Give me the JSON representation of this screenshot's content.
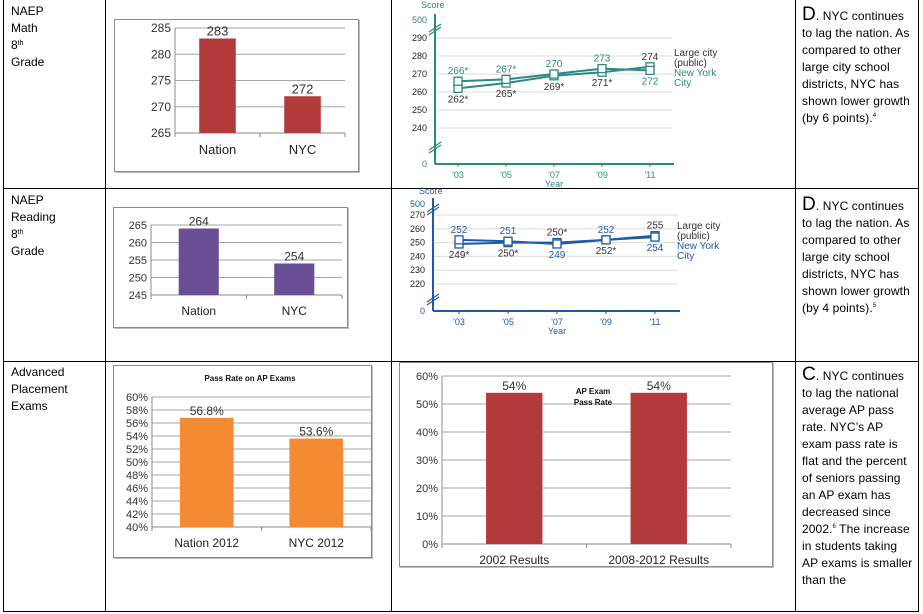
{
  "rows": [
    {
      "label_lines": [
        "NAEP",
        "Math",
        "8",
        "Grade"
      ],
      "label_sup": "th",
      "note": {
        "grade": "D",
        "text": ". NYC continues to lag the nation. As compared to other large city school districts, NYC has shown lower growth (by 6 points).",
        "footnote": "4"
      }
    },
    {
      "label_lines": [
        "NAEP",
        "Reading",
        "8",
        "Grade"
      ],
      "label_sup": "th",
      "note": {
        "grade": "D",
        "text": ". NYC continues to lag the nation. As compared to other large city school districts, NYC has shown lower growth (by 4 points).",
        "footnote": "5"
      }
    },
    {
      "label_lines": [
        "Advanced",
        "Placement",
        "Exams"
      ],
      "note": {
        "grade": "C",
        "text_before": ". NYC continues to lag the national average AP pass rate. NYC’s AP exam pass rate is flat and the percent of seniors passing an AP exam has decreased since 2002.",
        "footnote": "6",
        "text_after": " The increase in students taking AP exams is smaller than the"
      }
    }
  ],
  "chart_data": [
    {
      "id": "math-bar",
      "type": "bar",
      "title": "",
      "categories": [
        "Nation",
        "NYC"
      ],
      "values": [
        283,
        272
      ],
      "data_labels": [
        "283",
        "272"
      ],
      "ylim": [
        265,
        285
      ],
      "yticks": [
        265,
        270,
        275,
        280,
        285
      ],
      "ytick_labels": [
        "265",
        "270",
        "275",
        "280",
        "285"
      ],
      "color": "#b33a3a",
      "grid": true
    },
    {
      "id": "math-line",
      "type": "line",
      "ylabel": "Score",
      "xlabel": "Year",
      "x": [
        "'03",
        "'05",
        "'07",
        "'09",
        "'11"
      ],
      "ytick_labels": [
        "0",
        "240",
        "250",
        "260",
        "270",
        "280",
        "290",
        "500"
      ],
      "ylim_broken": [
        240,
        290
      ],
      "axis_color": "#2a8a80",
      "series": [
        {
          "name": "Large city (public)",
          "values": [
            262,
            265,
            269,
            271,
            274
          ],
          "labels": [
            "262*",
            "265*",
            "269*",
            "271*",
            "274"
          ],
          "label_color": "#333333"
        },
        {
          "name": "New York City",
          "values": [
            266,
            267,
            270,
            273,
            272
          ],
          "labels": [
            "266*",
            "267*",
            "270",
            "273",
            "272"
          ],
          "label_color": "#2a8a80"
        }
      ],
      "legend": [
        {
          "lines": [
            "Large city",
            "(public)"
          ],
          "color": "#333333"
        },
        {
          "lines": [
            "New York",
            "City"
          ],
          "color": "#2a8a80"
        }
      ],
      "legend_position": "right",
      "grid": true
    },
    {
      "id": "reading-bar",
      "type": "bar",
      "title": "",
      "categories": [
        "Nation",
        "NYC"
      ],
      "values": [
        264,
        254
      ],
      "data_labels": [
        "264",
        "254"
      ],
      "ylim": [
        245,
        265
      ],
      "yticks": [
        245,
        250,
        255,
        260,
        265
      ],
      "ytick_labels": [
        "245",
        "250",
        "255",
        "260",
        "265"
      ],
      "color": "#6b4f96",
      "grid": true
    },
    {
      "id": "reading-line",
      "type": "line",
      "ylabel": "Score",
      "xlabel": "Year",
      "x": [
        "'03",
        "'05",
        "'07",
        "'09",
        "'11"
      ],
      "ytick_labels": [
        "0",
        "220",
        "230",
        "240",
        "250",
        "260",
        "270",
        "500"
      ],
      "ylim_broken": [
        220,
        270
      ],
      "axis_color": "#1f5aa6",
      "series": [
        {
          "name": "Large city (public)",
          "values": [
            249,
            250,
            250,
            252,
            255
          ],
          "labels": [
            "249*",
            "250*",
            "250*",
            "252*",
            "255"
          ],
          "label_color": "#333333"
        },
        {
          "name": "New York City",
          "values": [
            252,
            251,
            249,
            252,
            254
          ],
          "labels": [
            "252",
            "251",
            "249",
            "252",
            "254"
          ],
          "label_color": "#1f5aa6"
        }
      ],
      "legend": [
        {
          "lines": [
            "Large city",
            "(public)"
          ],
          "color": "#333333"
        },
        {
          "lines": [
            "New York",
            "City"
          ],
          "color": "#1f5aa6"
        }
      ],
      "legend_position": "right",
      "grid": true
    },
    {
      "id": "ap-nation-bar",
      "type": "bar",
      "title": "Pass Rate on AP Exams",
      "categories": [
        "Nation 2012",
        "NYC 2012"
      ],
      "values": [
        56.8,
        53.6
      ],
      "data_labels": [
        "56.8%",
        "53.6%"
      ],
      "ylim": [
        40,
        60
      ],
      "yticks": [
        40,
        42,
        44,
        46,
        48,
        50,
        52,
        54,
        56,
        58,
        60
      ],
      "ytick_labels": [
        "40%",
        "42%",
        "44%",
        "46%",
        "48%",
        "50%",
        "52%",
        "54%",
        "56%",
        "58%",
        "60%"
      ],
      "color": "#f58a34",
      "grid": true
    },
    {
      "id": "ap-nyc-bar",
      "type": "bar",
      "title": "AP Exam Pass Rate",
      "title_lines": [
        "AP Exam",
        "Pass Rate"
      ],
      "categories": [
        "2002 Results",
        "2008-2012 Results"
      ],
      "values": [
        54,
        54
      ],
      "data_labels": [
        "54%",
        "54%"
      ],
      "ylim": [
        0,
        60
      ],
      "yticks": [
        0,
        10,
        20,
        30,
        40,
        50,
        60
      ],
      "ytick_labels": [
        "0%",
        "10%",
        "20%",
        "30%",
        "40%",
        "50%",
        "60%"
      ],
      "color": "#b33a3a",
      "grid": true
    }
  ]
}
